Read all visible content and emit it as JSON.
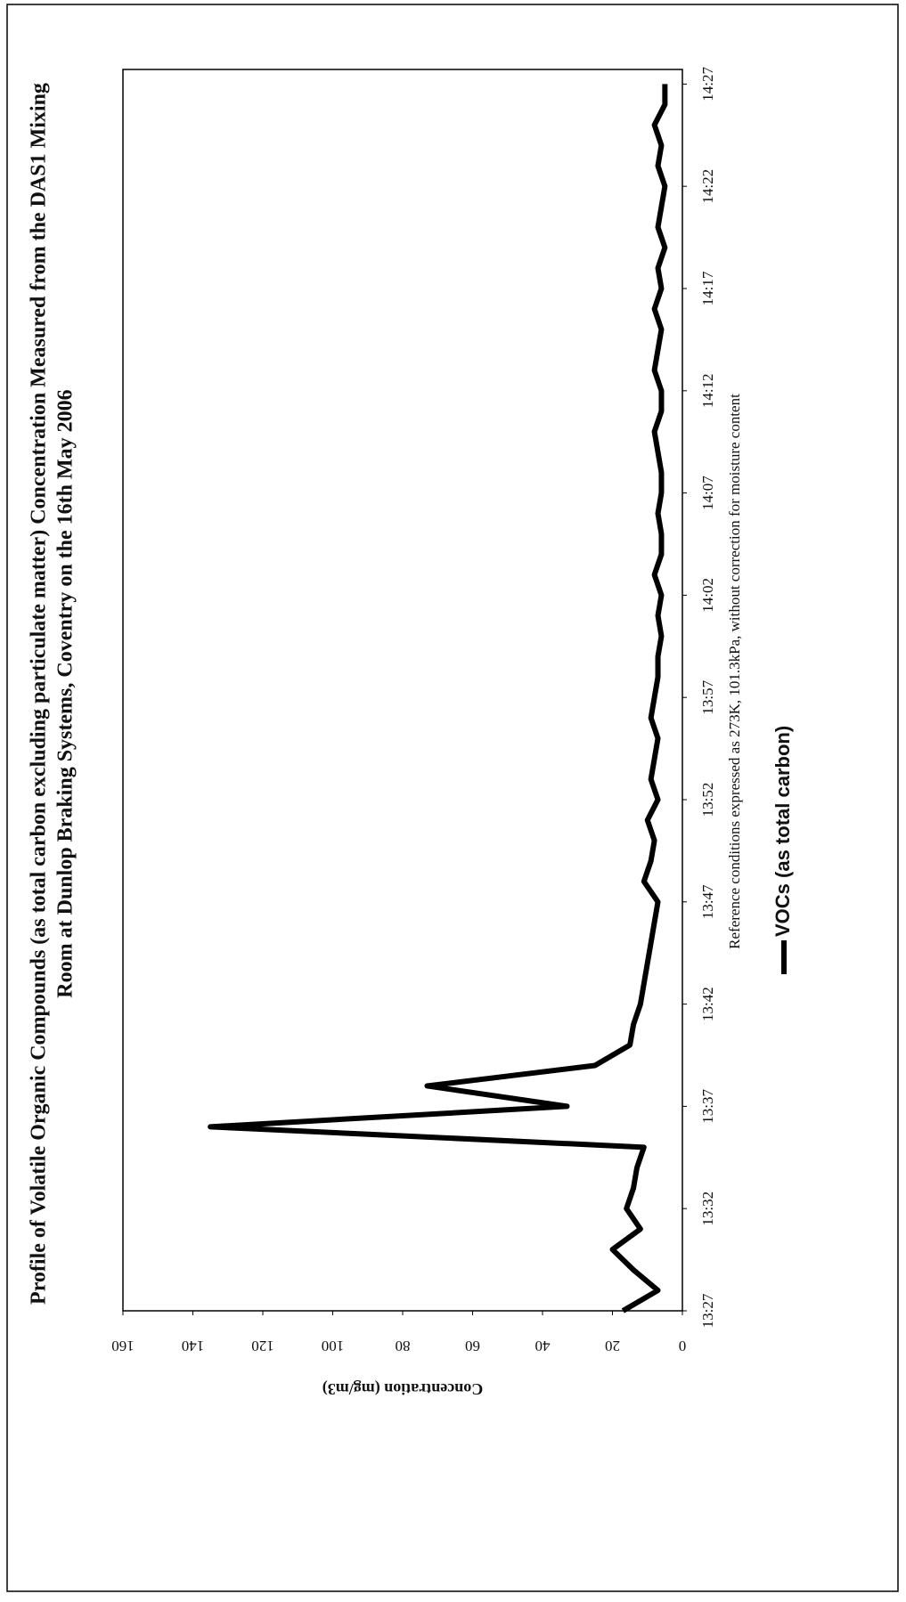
{
  "chart_data": {
    "type": "line",
    "title": "Profile of Volatile Organic Compounds (as total carbon excluding particulate matter) Concentration Measured from the DAS1 Mixing",
    "subtitle": "Room at Dunlop Braking Systems, Coventry on the 16th May 2006",
    "y_label": "Concentration (mg/m3)",
    "x_label": "Reference conditions expressed as 273K, 101.3kPa, without correction for moisture content",
    "x": [
      "13:27",
      "13:28",
      "13:29",
      "13:30",
      "13:31",
      "13:32",
      "13:33",
      "13:34",
      "13:35",
      "13:36",
      "13:37",
      "13:38",
      "13:39",
      "13:40",
      "13:41",
      "13:42",
      "13:43",
      "13:44",
      "13:45",
      "13:46",
      "13:47",
      "13:48",
      "13:49",
      "13:50",
      "13:51",
      "13:52",
      "13:53",
      "13:54",
      "13:55",
      "13:56",
      "13:57",
      "13:58",
      "13:59",
      "14:00",
      "14:01",
      "14:02",
      "14:03",
      "14:04",
      "14:05",
      "14:06",
      "14:07",
      "14:08",
      "14:09",
      "14:10",
      "14:11",
      "14:12",
      "14:13",
      "14:14",
      "14:15",
      "14:16",
      "14:17",
      "14:18",
      "14:19",
      "14:20",
      "14:21",
      "14:22",
      "14:23",
      "14:24",
      "14:25",
      "14:26",
      "14:27"
    ],
    "xticks": [
      "13:27",
      "13:32",
      "13:37",
      "13:42",
      "13:47",
      "13:52",
      "13:57",
      "14:02",
      "14:07",
      "14:12",
      "14:17",
      "14:22",
      "14:27"
    ],
    "series": [
      {
        "name": "VOCs (as total carbon)",
        "color": "#000000",
        "values": [
          17,
          7,
          14,
          20,
          12,
          16,
          14,
          13,
          11,
          135,
          33,
          73,
          25,
          15,
          14,
          12,
          11,
          10,
          9,
          8,
          7,
          11,
          9,
          8,
          10,
          7,
          9,
          8,
          7,
          9,
          8,
          7,
          7,
          6,
          7,
          6,
          8,
          6,
          6,
          7,
          6,
          6,
          7,
          8,
          6,
          6,
          8,
          7,
          6,
          8,
          6,
          7,
          5,
          7,
          6,
          5,
          7,
          6,
          8,
          5,
          5
        ]
      }
    ],
    "ylim": [
      0,
      160
    ],
    "yticks": [
      0,
      20,
      40,
      60,
      80,
      100,
      120,
      140,
      160
    ]
  }
}
